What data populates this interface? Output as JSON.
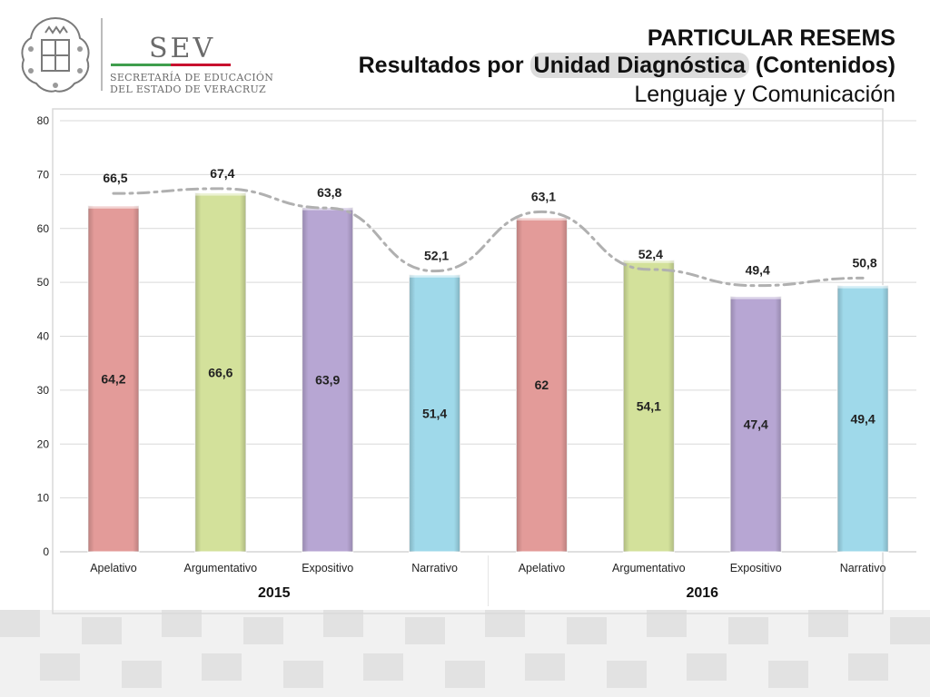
{
  "logo": {
    "org_short": "SEV",
    "org_line1": "SECRETARÍA DE EDUCACIÓN",
    "org_line2": "DEL ESTADO DE VERACRUZ",
    "colors": {
      "green": "#3f9e4d",
      "red": "#c8102e",
      "gray": "#6b6b6b"
    }
  },
  "header": {
    "title": "PARTICULAR RESEMS",
    "subtitle_prefix": "Resultados por ",
    "subtitle_highlight": "Unidad Diagnóstica",
    "subtitle_suffix": " (Contenidos)",
    "subject": "Lenguaje y Comunicación"
  },
  "chart_data": {
    "type": "bar",
    "title": "",
    "xlabel": "",
    "ylabel": "",
    "ylim": [
      0,
      80
    ],
    "yticks": [
      0,
      10,
      20,
      30,
      40,
      50,
      60,
      70,
      80
    ],
    "grid": true,
    "legend": "none",
    "categories": [
      "Apelativo",
      "Argumentativo",
      "Expositivo",
      "Narrativo",
      "Apelativo",
      "Argumentativo",
      "Expositivo",
      "Narrativo"
    ],
    "groups": [
      {
        "label": "2015",
        "categories": [
          0,
          1,
          2,
          3
        ]
      },
      {
        "label": "2016",
        "categories": [
          4,
          5,
          6,
          7
        ]
      }
    ],
    "series": [
      {
        "type": "bar",
        "values": [
          64.2,
          66.6,
          63.9,
          51.4,
          62,
          54.1,
          47.4,
          49.4
        ],
        "value_labels": [
          "64,2",
          "66,6",
          "63,9",
          "51,4",
          "62",
          "54,1",
          "47,4",
          "49,4"
        ],
        "colors": [
          "#e39b99",
          "#d3e19b",
          "#b7a6d3",
          "#9fd9ea",
          "#e39b99",
          "#d3e19b",
          "#b7a6d3",
          "#9fd9ea"
        ]
      },
      {
        "type": "line",
        "style": "dash-dot",
        "color": "#b0b0b0",
        "values": [
          66.5,
          67.4,
          63.8,
          52.1,
          63.1,
          52.4,
          49.4,
          50.8
        ],
        "value_labels": [
          "66,5",
          "67,4",
          "63,8",
          "52,1",
          "63,1",
          "52,4",
          "49,4",
          "50,8"
        ]
      }
    ]
  }
}
